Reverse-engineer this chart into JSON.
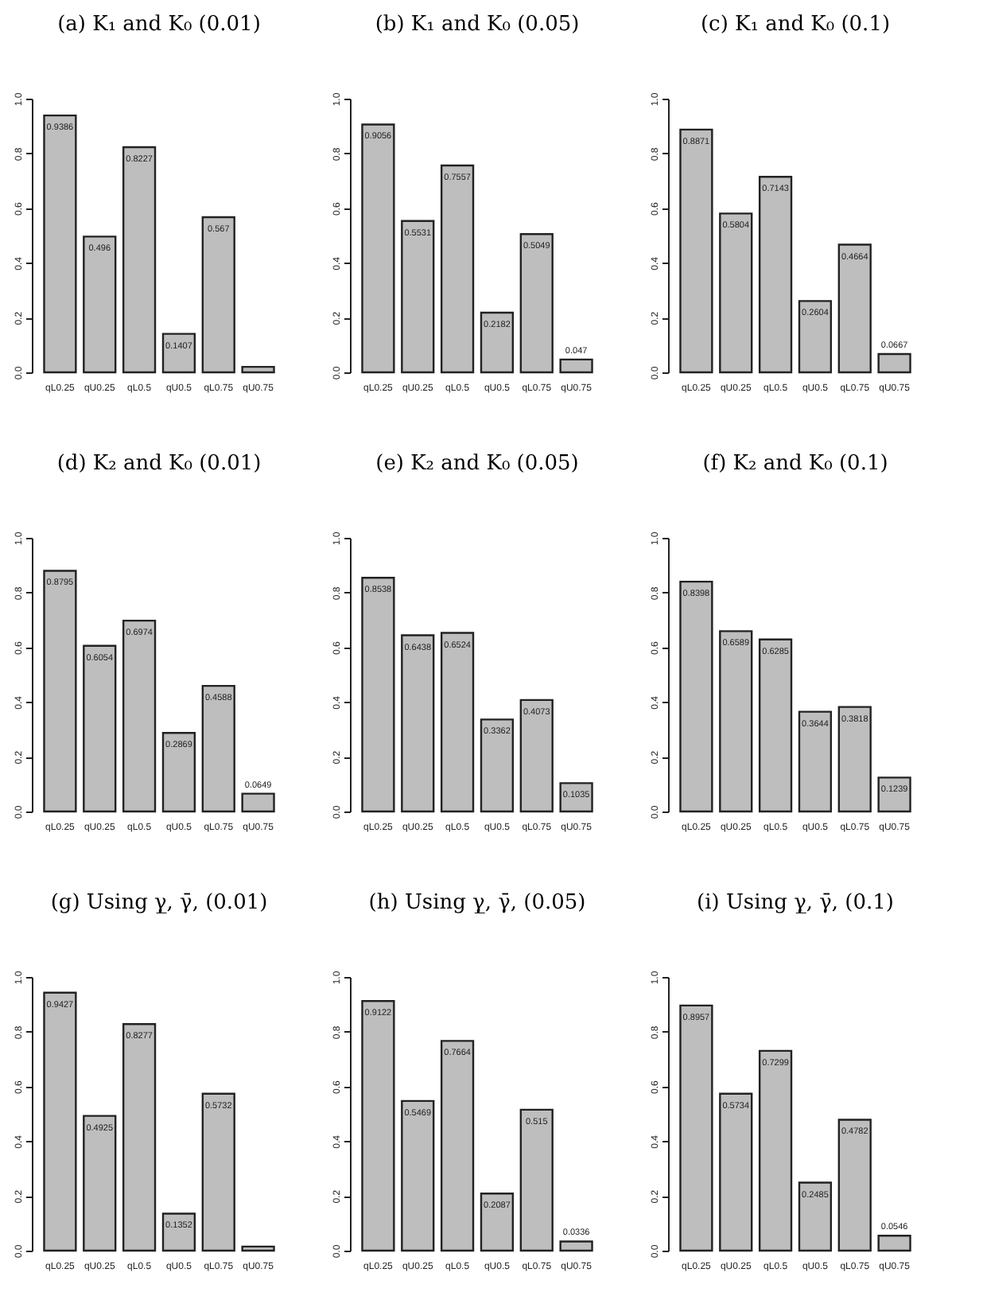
{
  "chart_data": [
    {
      "type": "bar",
      "title": "(a) K₁ and K₀ (0.01)",
      "categories": [
        "qL0.25",
        "qU0.25",
        "qL0.5",
        "qU0.5",
        "qL0.75",
        "qU0.75"
      ],
      "values": [
        0.9386,
        0.496,
        0.8227,
        0.1407,
        0.567,
        0.02
      ],
      "value_labels": [
        "0.9386",
        "0.496",
        "0.8227",
        "0.1407",
        "0.567",
        null
      ],
      "color": "#bebebe",
      "ylim": [
        0,
        1
      ],
      "yticks": [
        "0.0",
        "0.2",
        "0.4",
        "0.6",
        "0.8",
        "1.0"
      ]
    },
    {
      "type": "bar",
      "title": "(b) K₁ and K₀ (0.05)",
      "categories": [
        "qL0.25",
        "qU0.25",
        "qL0.5",
        "qU0.5",
        "qL0.75",
        "qU0.75"
      ],
      "values": [
        0.9056,
        0.5531,
        0.7557,
        0.2182,
        0.5049,
        0.047
      ],
      "data_labels": true,
      "color": "#bebebe",
      "ylim": [
        0,
        1
      ],
      "yticks": [
        "0.0",
        "0.2",
        "0.4",
        "0.6",
        "0.8",
        "1.0"
      ]
    },
    {
      "type": "bar",
      "title": "(c) K₁ and K₀ (0.1)",
      "categories": [
        "qL0.25",
        "qU0.25",
        "qL0.5",
        "qU0.5",
        "qL0.75",
        "qU0.75"
      ],
      "values": [
        0.8871,
        0.5804,
        0.7143,
        0.2604,
        0.4664,
        0.0667
      ],
      "data_labels": true,
      "color": "#bebebe",
      "ylim": [
        0,
        1
      ],
      "yticks": [
        "0.0",
        "0.2",
        "0.4",
        "0.6",
        "0.8",
        "1.0"
      ]
    },
    {
      "type": "bar",
      "title": "(d) K₂ and K₀ (0.01)",
      "categories": [
        "qL0.25",
        "qU0.25",
        "qL0.5",
        "qU0.5",
        "qL0.75",
        "qU0.75"
      ],
      "values": [
        0.8795,
        0.6054,
        0.6974,
        0.2869,
        0.4588,
        0.0649
      ],
      "data_labels": true,
      "color": "#bebebe",
      "ylim": [
        0,
        1
      ],
      "yticks": [
        "0.0",
        "0.2",
        "0.4",
        "0.6",
        "0.8",
        "1.0"
      ]
    },
    {
      "type": "bar",
      "title": "(e) K₂ and K₀ (0.05)",
      "categories": [
        "qL0.25",
        "qU0.25",
        "qL0.5",
        "qU0.5",
        "qL0.75",
        "qU0.75"
      ],
      "values": [
        0.8538,
        0.6438,
        0.6524,
        0.3362,
        0.4073,
        0.1035
      ],
      "data_labels": true,
      "color": "#bebebe",
      "ylim": [
        0,
        1
      ],
      "yticks": [
        "0.0",
        "0.2",
        "0.4",
        "0.6",
        "0.8",
        "1.0"
      ]
    },
    {
      "type": "bar",
      "title": "(f) K₂ and K₀ (0.1)",
      "categories": [
        "qL0.25",
        "qU0.25",
        "qL0.5",
        "qU0.5",
        "qL0.75",
        "qU0.75"
      ],
      "values": [
        0.8398,
        0.6589,
        0.6285,
        0.3644,
        0.3818,
        0.1239
      ],
      "data_labels": true,
      "color": "#bebebe",
      "ylim": [
        0,
        1
      ],
      "yticks": [
        "0.0",
        "0.2",
        "0.4",
        "0.6",
        "0.8",
        "1.0"
      ]
    },
    {
      "type": "bar",
      "title": "(g) Using γ̲, γ̄, (0.01)",
      "categories": [
        "qL0.25",
        "qU0.25",
        "qL0.5",
        "qU0.5",
        "qL0.75",
        "qU0.75"
      ],
      "values": [
        0.9427,
        0.4925,
        0.8277,
        0.1352,
        0.5732,
        0.015
      ],
      "value_labels": [
        "0.9427",
        "0.4925",
        "0.8277",
        "0.1352",
        "0.5732",
        null
      ],
      "color": "#bebebe",
      "ylim": [
        0,
        1
      ],
      "yticks": [
        "0.0",
        "0.2",
        "0.4",
        "0.6",
        "0.8",
        "1.0"
      ]
    },
    {
      "type": "bar",
      "title": "(h) Using γ̲, γ̄, (0.05)",
      "categories": [
        "qL0.25",
        "qU0.25",
        "qL0.5",
        "qU0.5",
        "qL0.75",
        "qU0.75"
      ],
      "values": [
        0.9122,
        0.5469,
        0.7664,
        0.2087,
        0.515,
        0.0336
      ],
      "data_labels": true,
      "color": "#bebebe",
      "ylim": [
        0,
        1
      ],
      "yticks": [
        "0.0",
        "0.2",
        "0.4",
        "0.6",
        "0.8",
        "1.0"
      ]
    },
    {
      "type": "bar",
      "title": "(i) Using γ̲, γ̄, (0.1)",
      "categories": [
        "qL0.25",
        "qU0.25",
        "qL0.5",
        "qU0.5",
        "qL0.75",
        "qU0.75"
      ],
      "values": [
        0.8957,
        0.5734,
        0.7299,
        0.2485,
        0.4782,
        0.0546
      ],
      "data_labels": true,
      "color": "#bebebe",
      "ylim": [
        0,
        1
      ],
      "yticks": [
        "0.0",
        "0.2",
        "0.4",
        "0.6",
        "0.8",
        "1.0"
      ]
    }
  ]
}
